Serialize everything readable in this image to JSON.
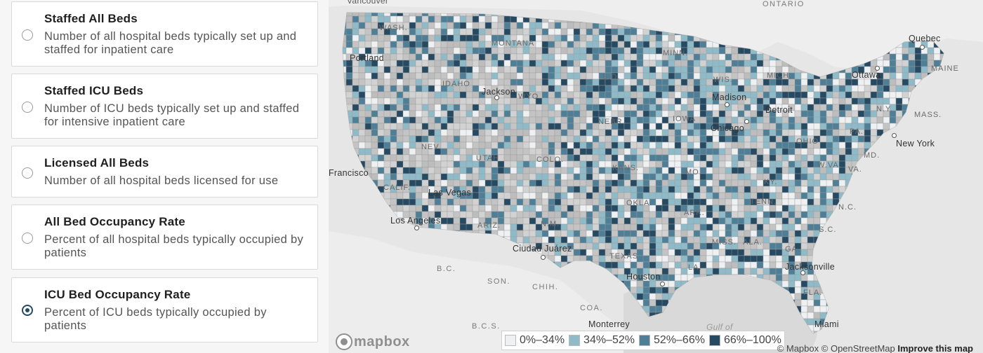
{
  "options": [
    {
      "title": "Staffed All Beds",
      "description": "Number of all hospital beds typically set up and staffed for inpatient care",
      "selected": false
    },
    {
      "title": "Staffed ICU Beds",
      "description": "Number of ICU beds typically set up and staffed for intensive inpatient care",
      "selected": false
    },
    {
      "title": "Licensed All Beds",
      "description": "Number of all hospital beds licensed for use",
      "selected": false
    },
    {
      "title": "All Bed Occupancy Rate",
      "description": "Percent of all hospital beds typically occupied by patients",
      "selected": false
    },
    {
      "title": "ICU Bed Occupancy Rate",
      "description": "Percent of ICU beds typically occupied by patients",
      "selected": true
    }
  ],
  "map": {
    "labels": {
      "vancouver": "Vancouver",
      "ontario": "ONTARIO",
      "quebec": "Quebec",
      "ottawa": "Ottawa",
      "maine": "MAINE",
      "wash": "WASH.",
      "montana": "MONTANA",
      "portland": "Portland",
      "idaho": "IDAHO",
      "jackson": "Jackson",
      "wyo": "WYO.",
      "minn": "MINN.",
      "sd": "S.D.",
      "wis": "WIS.",
      "mich": "MICH.",
      "madison": "Madison",
      "detroit": "Detroit",
      "ny": "N.Y.",
      "mass": "MASS.",
      "nebr": "NEBR.",
      "iowa": "IOWA",
      "chicago": "Chicago",
      "pa": "PA.",
      "ohio": "OHIO",
      "new_york": "New York",
      "md": "MD.",
      "nev": "NEV.",
      "utah": "UTAH",
      "colo": "COLO.",
      "san_francisco": "Francisco",
      "kans": "KANS.",
      "mo": "MO.",
      "ky": "KY.",
      "wva": "W.VA.",
      "va": "VA.",
      "calif": "CALIF.",
      "las_vegas": "Las Vegas",
      "okla": "OKLA.",
      "tenn": "TENN.",
      "nc": "N.C.",
      "ark": "ARK.",
      "sc": "S.C.",
      "los_angeles": "Los Angeles",
      "ariz": "ARIZ.",
      "nm": "N.M.",
      "miss": "MISS.",
      "ala": "ALA.",
      "ga": "GA.",
      "ciudad_juarez": "Ciudad Juárez",
      "texas": "TEXAS",
      "la": "LA.",
      "jacksonville": "Jacksonville",
      "bc": "B.C.",
      "son": "SON.",
      "chih": "CHIH.",
      "houston": "Houston",
      "fla": "FLA.",
      "coa": "COA.",
      "monterrey": "Monterrey",
      "gulf": "Gulf of",
      "bcs": "B.C.S.",
      "miami": "Miami"
    },
    "legend": [
      {
        "label": "0%–34%",
        "color": "#eef0f2"
      },
      {
        "label": "34%–52%",
        "color": "#8fbac8"
      },
      {
        "label": "52%–66%",
        "color": "#4f7f97"
      },
      {
        "label": "66%–100%",
        "color": "#274a63"
      }
    ],
    "logo_text": "mapbox",
    "attribution": {
      "mapbox": "© Mapbox",
      "osm": "© OpenStreetMap",
      "improve": "Improve this map"
    }
  }
}
